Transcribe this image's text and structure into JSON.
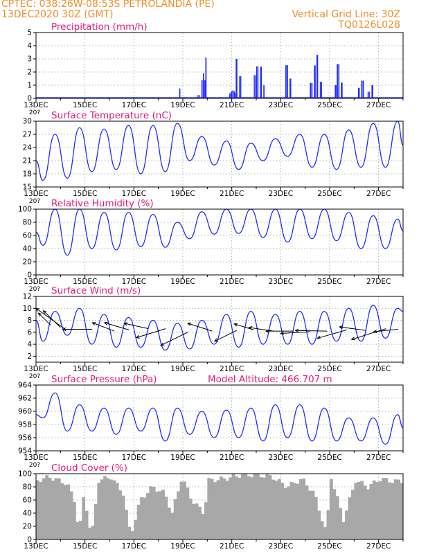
{
  "header": {
    "line1_left": "CPTEC:   038:26W-08:53S   PETROLANDIA (PE)",
    "line2_left": "13DEC2020 30Z (GMT)",
    "line1_right": "Vertical Grid Line: 30Z",
    "line2_right": "TQ0126L028"
  },
  "colors": {
    "header": "#f28c28",
    "title": "#e8197a",
    "line": "#1f2bff",
    "cloud": "#a8a8a8",
    "wind_arrow": "#000000"
  },
  "x_axis": {
    "start": "13DEC2020",
    "days": 15,
    "labels": [
      "13DEC",
      "15DEC",
      "17DEC",
      "19DEC",
      "21DEC",
      "23DEC",
      "25DEC",
      "27DEC"
    ],
    "label_day_offsets": [
      0,
      2,
      4,
      6,
      8,
      10,
      12,
      14
    ],
    "stub_label": "20?"
  },
  "chart_data": [
    {
      "type": "bar",
      "title": "Precipitation (mm/h)",
      "ylim": [
        0,
        5
      ],
      "yticks": [
        0,
        1,
        2,
        3,
        4,
        5
      ],
      "events": [
        {
          "day": 2.0,
          "width": 0.3,
          "value": 0.05
        },
        {
          "day": 3.9,
          "width": 0.2,
          "value": 0.05
        },
        {
          "day": 5.88,
          "width": 0.06,
          "value": 0.75
        },
        {
          "day": 6.65,
          "width": 0.1,
          "value": 0.3
        },
        {
          "day": 6.85,
          "width": 0.18,
          "value": 1.9
        },
        {
          "day": 6.95,
          "width": 0.06,
          "value": 3.1
        },
        {
          "day": 8.05,
          "width": 0.3,
          "value": 0.6
        },
        {
          "day": 8.2,
          "width": 0.08,
          "value": 3.0
        },
        {
          "day": 8.35,
          "width": 0.1,
          "value": 2.0
        },
        {
          "day": 8.95,
          "width": 0.1,
          "value": 2.1
        },
        {
          "day": 9.05,
          "width": 0.1,
          "value": 2.9
        },
        {
          "day": 9.2,
          "width": 0.08,
          "value": 2.4
        },
        {
          "day": 9.32,
          "width": 0.06,
          "value": 1.0
        },
        {
          "day": 10.25,
          "width": 0.12,
          "value": 3.0
        },
        {
          "day": 10.4,
          "width": 0.08,
          "value": 1.5
        },
        {
          "day": 11.25,
          "width": 0.12,
          "value": 1.4
        },
        {
          "day": 11.4,
          "width": 0.08,
          "value": 2.5
        },
        {
          "day": 11.5,
          "width": 0.08,
          "value": 3.3
        },
        {
          "day": 11.65,
          "width": 0.1,
          "value": 1.5
        },
        {
          "day": 12.25,
          "width": 0.08,
          "value": 1.0
        },
        {
          "day": 12.35,
          "width": 0.12,
          "value": 3.1
        },
        {
          "day": 12.5,
          "width": 0.08,
          "value": 1.2
        },
        {
          "day": 13.2,
          "width": 0.08,
          "value": 0.8
        },
        {
          "day": 13.35,
          "width": 0.12,
          "value": 1.6
        },
        {
          "day": 13.6,
          "width": 0.1,
          "value": 0.6
        },
        {
          "day": 13.75,
          "width": 0.08,
          "value": 1.0
        }
      ]
    },
    {
      "type": "line",
      "title": "Surface Temperature (nC)",
      "ylim": [
        15,
        30
      ],
      "yticks": [
        15,
        18,
        21,
        24,
        27,
        30
      ],
      "lows": [
        16.5,
        17.0,
        18.5,
        19.0,
        18.0,
        18.5,
        21.0,
        20.0,
        19.0,
        21.0,
        22.0,
        19.5,
        19.0,
        19.5,
        19.5
      ],
      "highs": [
        27.0,
        28.5,
        28.2,
        29.0,
        29.0,
        29.5,
        26.5,
        25.5,
        25.0,
        26.0,
        27.0,
        27.0,
        28.0,
        29.5,
        30.0
      ],
      "start_value": 21.0,
      "end_value": 24.5
    },
    {
      "type": "line",
      "title": "Relative Humidity (%)",
      "ylim": [
        0,
        100
      ],
      "yticks": [
        0,
        20,
        40,
        60,
        80,
        100
      ],
      "lows": [
        45.0,
        30.0,
        40.0,
        38.0,
        43.0,
        42.0,
        55.0,
        62.0,
        63.0,
        57.0,
        50.0,
        55.0,
        52.0,
        40.0,
        40.0
      ],
      "highs": [
        100.0,
        100.0,
        95.0,
        95.0,
        92.0,
        80.0,
        96.0,
        100.0,
        100.0,
        100.0,
        100.0,
        100.0,
        95.0,
        90.0,
        85.0
      ],
      "start_value": 65.0,
      "end_value": 67.0
    },
    {
      "type": "line",
      "title": "Surface Wind (m/s)",
      "ylim": [
        1,
        12
      ],
      "yticks": [
        2,
        4,
        6,
        8,
        10,
        12
      ],
      "lows": [
        4.5,
        5.5,
        4.0,
        3.5,
        3.5,
        3.0,
        3.2,
        4.0,
        3.5,
        4.0,
        4.0,
        4.0,
        4.5,
        4.5,
        5.0
      ],
      "highs": [
        9.5,
        10.0,
        9.0,
        8.5,
        8.0,
        7.5,
        8.0,
        9.0,
        9.5,
        9.0,
        9.5,
        9.5,
        10.0,
        10.5,
        10.0
      ],
      "start_value": 8.0,
      "end_value": 9.5,
      "wind_arrows": [
        {
          "day": 1.2,
          "value": 6.5,
          "dx": -1.2,
          "dy": 3.5
        },
        {
          "day": 1.0,
          "value": 6.8,
          "dx": -0.7,
          "dy": 2.8
        },
        {
          "day": 0.6,
          "value": 7.2,
          "dx": -0.5,
          "dy": 2.0
        },
        {
          "day": 2.3,
          "value": 6.5,
          "dx": -1.2,
          "dy": 0.0
        },
        {
          "day": 3.2,
          "value": 6.2,
          "dx": -0.9,
          "dy": 1.4
        },
        {
          "day": 3.8,
          "value": 6.4,
          "dx": -1.0,
          "dy": 1.2
        },
        {
          "day": 4.6,
          "value": 6.6,
          "dx": -1.0,
          "dy": 0.9
        },
        {
          "day": 5.3,
          "value": 6.6,
          "dx": -1.2,
          "dy": -1.5
        },
        {
          "day": 6.2,
          "value": 6.0,
          "dx": -1.1,
          "dy": -2.2
        },
        {
          "day": 7.2,
          "value": 6.2,
          "dx": -1.0,
          "dy": 1.3
        },
        {
          "day": 8.2,
          "value": 6.3,
          "dx": -0.9,
          "dy": -1.8
        },
        {
          "day": 8.9,
          "value": 6.4,
          "dx": -0.8,
          "dy": 1.0
        },
        {
          "day": 9.7,
          "value": 6.2,
          "dx": -1.0,
          "dy": 0.6
        },
        {
          "day": 10.5,
          "value": 6.2,
          "dx": -1.1,
          "dy": 0.0
        },
        {
          "day": 11.2,
          "value": 6.1,
          "dx": -1.2,
          "dy": -0.3
        },
        {
          "day": 11.9,
          "value": 6.2,
          "dx": -1.3,
          "dy": 0.1
        },
        {
          "day": 12.7,
          "value": 6.4,
          "dx": -1.2,
          "dy": -1.4
        },
        {
          "day": 13.5,
          "value": 6.3,
          "dx": -1.1,
          "dy": 0.6
        },
        {
          "day": 14.3,
          "value": 6.6,
          "dx": -1.4,
          "dy": -1.8
        },
        {
          "day": 14.8,
          "value": 6.5,
          "dx": -1.0,
          "dy": -0.4
        }
      ]
    },
    {
      "type": "line",
      "title": "Surface Pressure (hPa)",
      "annotation": "Model Altitude: 466.707  m",
      "ylim": [
        954,
        964
      ],
      "yticks": [
        954,
        956,
        958,
        960,
        962,
        964
      ],
      "lows": [
        959.0,
        957.0,
        957.0,
        956.5,
        957.0,
        955.5,
        956.5,
        956.0,
        956.0,
        955.5,
        956.0,
        955.5,
        955.5,
        955.5,
        955.0
      ],
      "highs": [
        962.8,
        961.0,
        960.5,
        960.5,
        960.5,
        960.5,
        960.0,
        960.2,
        960.5,
        961.0,
        961.0,
        960.5,
        959.0,
        959.0,
        959.5
      ],
      "start_value": 959.5,
      "end_value": 957.5
    },
    {
      "type": "area",
      "title": "Cloud Cover (%)",
      "ylim": [
        0,
        100
      ],
      "yticks": [
        0,
        20,
        40,
        60,
        80,
        100
      ],
      "pattern": [
        {
          "day": 0.0,
          "value": 90
        },
        {
          "day": 0.5,
          "value": 95
        },
        {
          "day": 1.2,
          "value": 85
        },
        {
          "day": 1.5,
          "value": 60
        },
        {
          "day": 1.7,
          "value": 10
        },
        {
          "day": 1.9,
          "value": 70
        },
        {
          "day": 2.2,
          "value": 2
        },
        {
          "day": 2.5,
          "value": 90
        },
        {
          "day": 3.0,
          "value": 95
        },
        {
          "day": 3.5,
          "value": 70
        },
        {
          "day": 3.8,
          "value": 5
        },
        {
          "day": 4.2,
          "value": 60
        },
        {
          "day": 4.7,
          "value": 80
        },
        {
          "day": 5.2,
          "value": 70
        },
        {
          "day": 5.5,
          "value": 40
        },
        {
          "day": 5.9,
          "value": 95
        },
        {
          "day": 6.3,
          "value": 60
        },
        {
          "day": 6.8,
          "value": 40
        },
        {
          "day": 7.0,
          "value": 90
        },
        {
          "day": 7.6,
          "value": 92
        },
        {
          "day": 8.3,
          "value": 98
        },
        {
          "day": 9.0,
          "value": 98
        },
        {
          "day": 9.6,
          "value": 95
        },
        {
          "day": 10.2,
          "value": 80
        },
        {
          "day": 10.8,
          "value": 92
        },
        {
          "day": 11.3,
          "value": 70
        },
        {
          "day": 11.8,
          "value": 10
        },
        {
          "day": 12.0,
          "value": 95
        },
        {
          "day": 12.5,
          "value": 30
        },
        {
          "day": 13.0,
          "value": 90
        },
        {
          "day": 13.5,
          "value": 80
        },
        {
          "day": 14.0,
          "value": 92
        },
        {
          "day": 14.6,
          "value": 88
        },
        {
          "day": 15.0,
          "value": 90
        }
      ]
    }
  ]
}
